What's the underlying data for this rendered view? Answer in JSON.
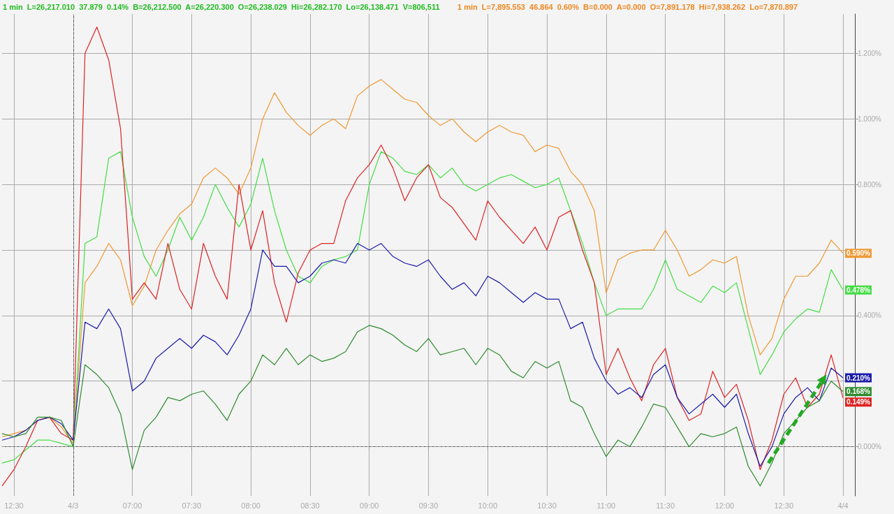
{
  "chart_data": {
    "type": "line",
    "annotations": [
      "1 min  L=26,217.010  37.879  0.14%  B=26,212.500  A=26,220.300  O=26,238.029  Hi=26,282.170  Lo=26,138.471  V=806,511",
      "1 min  L=7,895.553  46.864  0.60%  B=0.000  A=0.000  O=7,891.178  Hi=7,938.262  Lo=7,870.897"
    ],
    "categories": [
      null,
      "12:30",
      null,
      null,
      null,
      null,
      "4/3",
      null,
      null,
      null,
      null,
      "07:00",
      null,
      null,
      null,
      null,
      "07:30",
      null,
      null,
      null,
      null,
      "08:00",
      null,
      null,
      null,
      null,
      "08:30",
      null,
      null,
      null,
      null,
      "09:00",
      null,
      null,
      null,
      null,
      "09:30",
      null,
      null,
      null,
      null,
      "10:00",
      null,
      null,
      null,
      null,
      "10:30",
      null,
      null,
      null,
      null,
      "11:00",
      null,
      null,
      null,
      null,
      "11:30",
      null,
      null,
      null,
      null,
      "12:00",
      null,
      null,
      null,
      null,
      "12:30",
      null,
      null,
      null,
      null,
      "4/4",
      null
    ],
    "series": [
      {
        "color": "#ee9933",
        "values": [
          0.03,
          0.04,
          0.05,
          0.08,
          0.09,
          0.06,
          0.01,
          0.5,
          0.55,
          0.62,
          0.57,
          0.43,
          0.49,
          0.6,
          0.66,
          0.71,
          0.74,
          0.82,
          0.85,
          0.82,
          0.77,
          0.85,
          1.0,
          1.08,
          1.02,
          0.98,
          0.95,
          0.98,
          1.0,
          0.97,
          1.07,
          1.1,
          1.12,
          1.09,
          1.06,
          1.05,
          1.01,
          0.98,
          1.0,
          0.96,
          0.93,
          0.96,
          0.98,
          0.96,
          0.95,
          0.9,
          0.92,
          0.91,
          0.84,
          0.8,
          0.72,
          0.47,
          0.57,
          0.59,
          0.6,
          0.6,
          0.66,
          0.6,
          0.52,
          0.54,
          0.57,
          0.56,
          0.58,
          0.4,
          0.28,
          0.33,
          0.45,
          0.52,
          0.52,
          0.56,
          0.63,
          0.59,
          null
        ],
        "value_labels": [
          null,
          null,
          null,
          null,
          null,
          null,
          null,
          null,
          null,
          null,
          null,
          null,
          null,
          null,
          null,
          null,
          null,
          null,
          null,
          null,
          null,
          null,
          null,
          null,
          null,
          null,
          null,
          null,
          null,
          null,
          null,
          null,
          null,
          null,
          null,
          null,
          null,
          null,
          null,
          null,
          null,
          null,
          null,
          null,
          null,
          null,
          null,
          null,
          null,
          null,
          null,
          null,
          null,
          null,
          null,
          null,
          null,
          null,
          null,
          null,
          null,
          null,
          null,
          null,
          null,
          null,
          null,
          null,
          null,
          null,
          null,
          "0.590%",
          null
        ]
      },
      {
        "color": "#44dd44",
        "values": [
          -0.05,
          -0.04,
          -0.01,
          0.02,
          0.02,
          0.01,
          0.0,
          0.62,
          0.64,
          0.88,
          0.9,
          0.7,
          0.58,
          0.52,
          0.6,
          0.7,
          0.63,
          0.7,
          0.8,
          0.73,
          0.67,
          0.74,
          0.88,
          0.72,
          0.6,
          0.52,
          0.5,
          0.55,
          0.57,
          0.58,
          0.6,
          0.8,
          0.9,
          0.88,
          0.84,
          0.83,
          0.86,
          0.82,
          0.85,
          0.8,
          0.78,
          0.8,
          0.82,
          0.83,
          0.81,
          0.79,
          0.8,
          0.82,
          0.72,
          0.62,
          0.5,
          0.4,
          0.42,
          0.42,
          0.42,
          0.48,
          0.57,
          0.48,
          0.46,
          0.44,
          0.49,
          0.47,
          0.5,
          0.36,
          0.22,
          0.28,
          0.35,
          0.39,
          0.42,
          0.41,
          0.54,
          0.478,
          null
        ],
        "value_labels": [
          null,
          null,
          null,
          null,
          null,
          null,
          null,
          null,
          null,
          null,
          null,
          null,
          null,
          null,
          null,
          null,
          null,
          null,
          null,
          null,
          null,
          null,
          null,
          null,
          null,
          null,
          null,
          null,
          null,
          null,
          null,
          null,
          null,
          null,
          null,
          null,
          null,
          null,
          null,
          null,
          null,
          null,
          null,
          null,
          null,
          null,
          null,
          null,
          null,
          null,
          null,
          null,
          null,
          null,
          null,
          null,
          null,
          null,
          null,
          null,
          null,
          null,
          null,
          null,
          null,
          null,
          null,
          null,
          null,
          null,
          null,
          "0.478%",
          null
        ]
      },
      {
        "color": "#dd2222",
        "values": [
          -0.12,
          -0.07,
          0.0,
          0.08,
          0.09,
          0.04,
          0.02,
          1.2,
          1.28,
          1.18,
          0.97,
          0.45,
          0.5,
          0.45,
          0.62,
          0.48,
          0.42,
          0.62,
          0.52,
          0.45,
          0.8,
          0.6,
          0.72,
          0.5,
          0.38,
          0.53,
          0.6,
          0.62,
          0.62,
          0.75,
          0.82,
          0.86,
          0.92,
          0.85,
          0.75,
          0.82,
          0.86,
          0.76,
          0.73,
          0.68,
          0.63,
          0.75,
          0.7,
          0.66,
          0.62,
          0.67,
          0.6,
          0.7,
          0.72,
          0.6,
          0.5,
          0.22,
          0.3,
          0.21,
          0.14,
          0.25,
          0.3,
          0.15,
          0.08,
          0.1,
          0.23,
          0.15,
          0.19,
          0.08,
          -0.07,
          0.02,
          0.16,
          0.21,
          0.12,
          0.16,
          0.28,
          0.149,
          null
        ],
        "value_labels": [
          null,
          null,
          null,
          null,
          null,
          null,
          null,
          null,
          null,
          null,
          null,
          null,
          null,
          null,
          null,
          null,
          null,
          null,
          null,
          null,
          null,
          null,
          null,
          null,
          null,
          null,
          null,
          null,
          null,
          null,
          null,
          null,
          null,
          null,
          null,
          null,
          null,
          null,
          null,
          null,
          null,
          null,
          null,
          null,
          null,
          null,
          null,
          null,
          null,
          null,
          null,
          null,
          null,
          null,
          null,
          null,
          null,
          null,
          null,
          null,
          null,
          null,
          null,
          null,
          null,
          null,
          null,
          null,
          null,
          null,
          null,
          "0.149%",
          null
        ]
      },
      {
        "color": "#1a1aaa",
        "values": [
          0.02,
          0.03,
          0.05,
          0.08,
          0.09,
          0.07,
          0.02,
          0.38,
          0.36,
          0.42,
          0.36,
          0.17,
          0.2,
          0.27,
          0.3,
          0.33,
          0.3,
          0.34,
          0.32,
          0.28,
          0.34,
          0.42,
          0.6,
          0.55,
          0.55,
          0.5,
          0.52,
          0.56,
          0.57,
          0.56,
          0.62,
          0.6,
          0.62,
          0.58,
          0.56,
          0.55,
          0.57,
          0.52,
          0.48,
          0.5,
          0.46,
          0.52,
          0.5,
          0.47,
          0.44,
          0.47,
          0.45,
          0.45,
          0.36,
          0.38,
          0.27,
          0.2,
          0.16,
          0.18,
          0.15,
          0.22,
          0.25,
          0.15,
          0.1,
          0.13,
          0.16,
          0.12,
          0.16,
          0.04,
          -0.06,
          0.0,
          0.1,
          0.15,
          0.18,
          0.14,
          0.24,
          0.21,
          null
        ],
        "value_labels": [
          null,
          null,
          null,
          null,
          null,
          null,
          null,
          null,
          null,
          null,
          null,
          null,
          null,
          null,
          null,
          null,
          null,
          null,
          null,
          null,
          null,
          null,
          null,
          null,
          null,
          null,
          null,
          null,
          null,
          null,
          null,
          null,
          null,
          null,
          null,
          null,
          null,
          null,
          null,
          null,
          null,
          null,
          null,
          null,
          null,
          null,
          null,
          null,
          null,
          null,
          null,
          null,
          null,
          null,
          null,
          null,
          null,
          null,
          null,
          null,
          null,
          null,
          null,
          null,
          null,
          null,
          null,
          null,
          null,
          null,
          null,
          "0.210%",
          null
        ]
      },
      {
        "color": "#2e8b2e",
        "values": [
          0.04,
          0.03,
          0.04,
          0.09,
          0.09,
          0.08,
          0.0,
          0.25,
          0.22,
          0.18,
          0.1,
          -0.07,
          0.05,
          0.09,
          0.15,
          0.14,
          0.16,
          0.17,
          0.13,
          0.08,
          0.16,
          0.2,
          0.28,
          0.25,
          0.3,
          0.25,
          0.28,
          0.26,
          0.27,
          0.29,
          0.35,
          0.37,
          0.36,
          0.34,
          0.31,
          0.29,
          0.33,
          0.28,
          0.29,
          0.3,
          0.25,
          0.3,
          0.28,
          0.23,
          0.21,
          0.26,
          0.24,
          0.26,
          0.14,
          0.12,
          0.04,
          -0.03,
          0.02,
          0.0,
          0.06,
          0.13,
          0.12,
          0.06,
          0.0,
          0.04,
          0.03,
          0.04,
          0.06,
          -0.06,
          -0.12,
          -0.05,
          0.04,
          0.08,
          0.12,
          0.14,
          0.2,
          0.168,
          null
        ],
        "value_labels": [
          null,
          null,
          null,
          null,
          null,
          null,
          null,
          null,
          null,
          null,
          null,
          null,
          null,
          null,
          null,
          null,
          null,
          null,
          null,
          null,
          null,
          null,
          null,
          null,
          null,
          null,
          null,
          null,
          null,
          null,
          null,
          null,
          null,
          null,
          null,
          null,
          null,
          null,
          null,
          null,
          null,
          null,
          null,
          null,
          null,
          null,
          null,
          null,
          null,
          null,
          null,
          null,
          null,
          null,
          null,
          null,
          null,
          null,
          null,
          null,
          null,
          null,
          null,
          null,
          null,
          null,
          null,
          null,
          null,
          null,
          null,
          "0.168%",
          null
        ]
      }
    ],
    "ylim": [
      -0.15,
      1.32
    ],
    "yticks": [
      {
        "value": 0,
        "label": "0.000%"
      },
      {
        "value": 0.2,
        "label": null
      },
      {
        "value": 0.4,
        "label": "0.400%"
      },
      {
        "value": 0.6,
        "label": null
      },
      {
        "value": 0.8,
        "label": "0.800%"
      },
      {
        "value": 1,
        "label": "1.000%"
      },
      {
        "value": 1.2,
        "label": "1.200%"
      }
    ],
    "ref_lines": [
      {
        "axis": "y",
        "value": 0,
        "color": "#999999",
        "line_style": "dashed"
      },
      {
        "axis": "x",
        "value": "4/3",
        "color": "#666666",
        "line_style": "dashed"
      }
    ],
    "grid": true,
    "marker": "none",
    "line_style": "solid"
  }
}
